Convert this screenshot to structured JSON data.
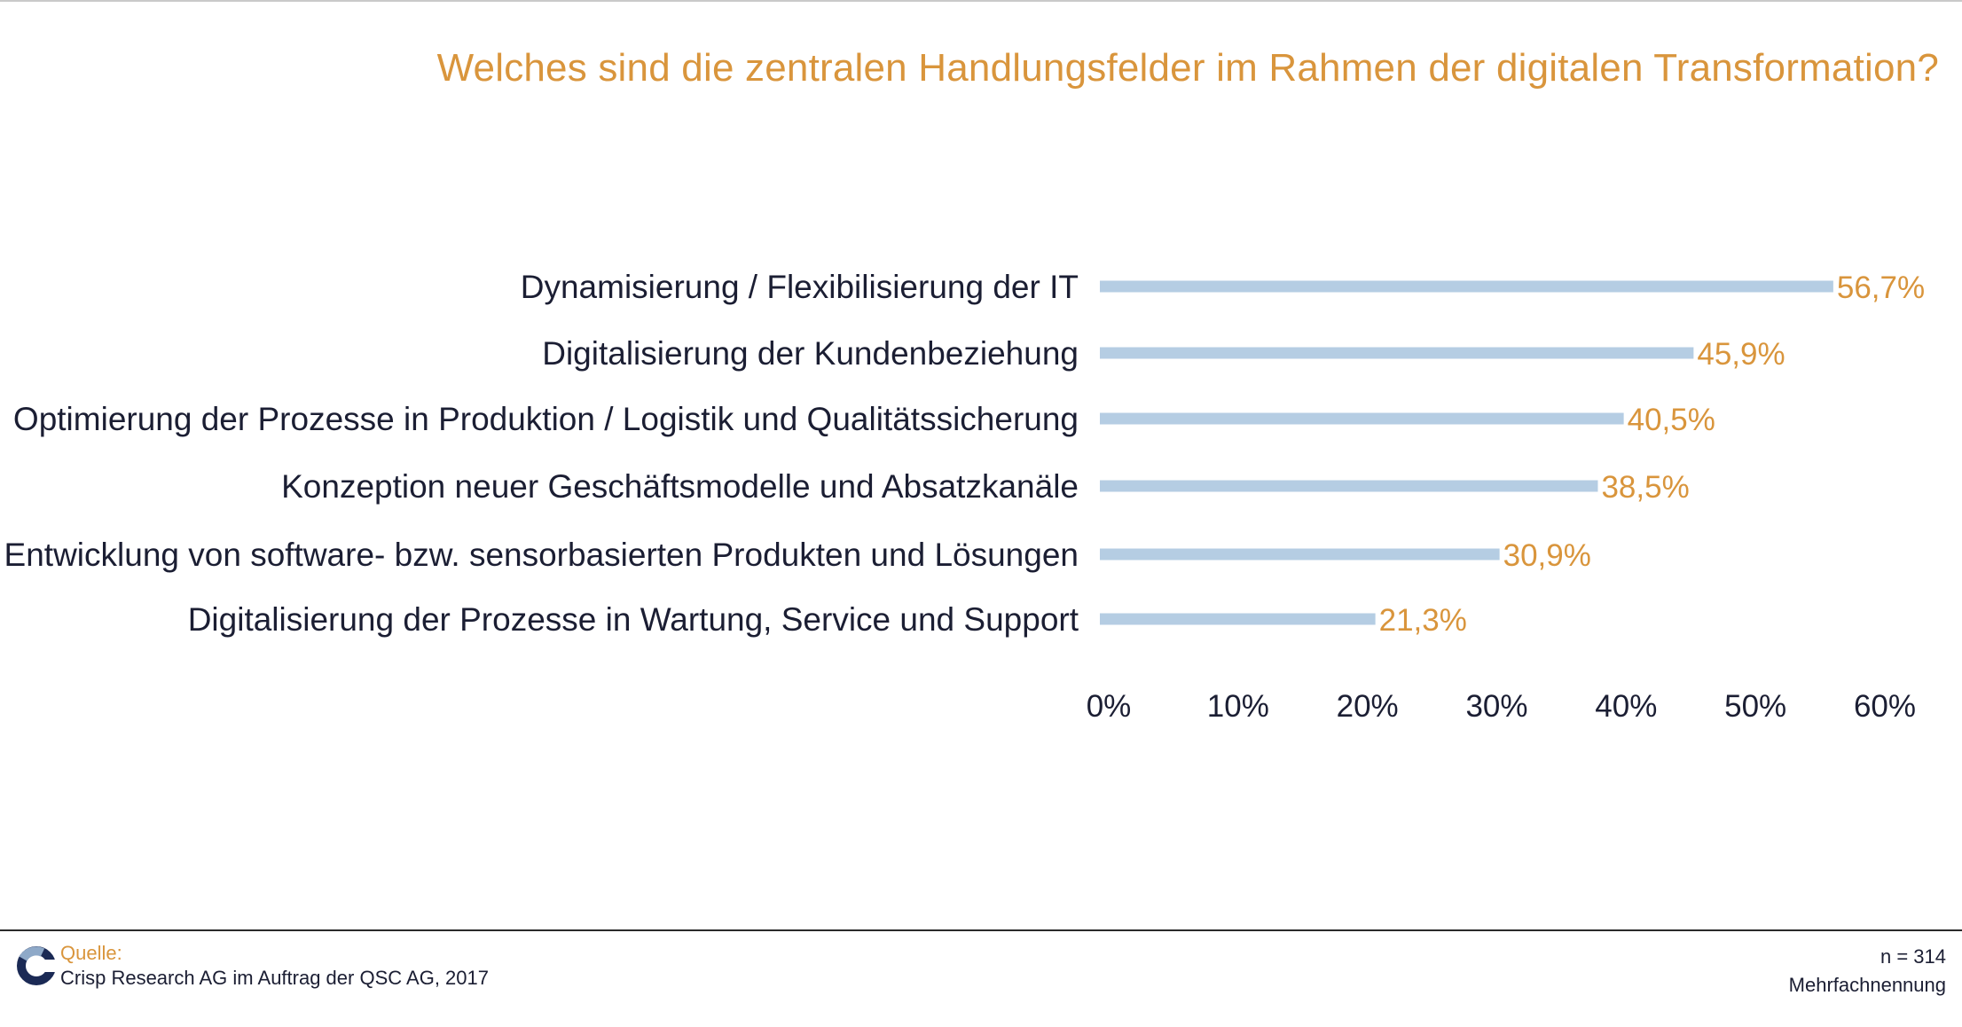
{
  "title": "Welches sind die zentralen Handlungsfelder im Rahmen der digitalen Transformation?",
  "chart_data": {
    "type": "bar",
    "orientation": "horizontal",
    "categories": [
      "Dynamisierung / Flexibilisierung der IT",
      "Digitalisierung der Kundenbeziehung",
      "Optimierung der Prozesse in Produktion / Logistik und Qualitätssicherung",
      "Konzeption neuer Geschäftsmodelle und Absatzkanäle",
      "Entwicklung von software- bzw. sensorbasierten Produkten und Lösungen",
      "Digitalisierung der Prozesse in Wartung, Service und Support"
    ],
    "values": [
      56.7,
      45.9,
      40.5,
      38.5,
      30.9,
      21.3
    ],
    "value_labels": [
      "56,7%",
      "45,9%",
      "40,5%",
      "38,5%",
      "30,9%",
      "21,3%"
    ],
    "xlim": [
      0,
      60
    ],
    "x_ticks": [
      0,
      10,
      20,
      30,
      40,
      50,
      60
    ],
    "x_tick_labels": [
      "0%",
      "10%",
      "20%",
      "30%",
      "40%",
      "50%",
      "60%"
    ],
    "bar_color": "#b5cde3",
    "value_label_color": "#d9953c",
    "grid": false
  },
  "footer": {
    "source_label": "Quelle:",
    "source_text": "Crisp Research AG im Auftrag der QSC AG, 2017",
    "n": "n = 314",
    "note": "Mehrfachnennung"
  },
  "colors": {
    "accent": "#d9953c",
    "text": "#1b1e33",
    "bar": "#b5cde3"
  }
}
